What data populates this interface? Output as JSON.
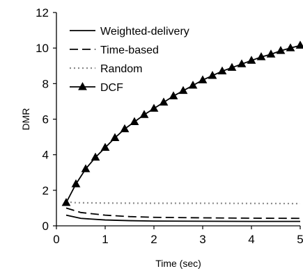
{
  "chart_data": {
    "type": "line",
    "xlabel": "Time (sec)",
    "ylabel": "DMR",
    "xlim": [
      0,
      5
    ],
    "ylim": [
      0,
      12
    ],
    "x_ticks": [
      "0",
      "1",
      "2",
      "3",
      "4",
      "5"
    ],
    "y_ticks": [
      "0",
      "2",
      "4",
      "6",
      "8",
      "10",
      "12"
    ],
    "legend_position": "top-left",
    "grid": false,
    "series": [
      {
        "name": "Weighted-delivery",
        "style": "solid",
        "color": "#000000",
        "x": [
          0.2,
          0.5,
          1.0,
          1.5,
          2.0,
          3.0,
          4.0,
          5.0
        ],
        "y": [
          0.6,
          0.42,
          0.33,
          0.29,
          0.27,
          0.26,
          0.25,
          0.25
        ]
      },
      {
        "name": "Time-based",
        "style": "dashed",
        "color": "#000000",
        "x": [
          0.2,
          0.5,
          1.0,
          1.5,
          2.0,
          3.0,
          4.0,
          5.0
        ],
        "y": [
          1.0,
          0.75,
          0.6,
          0.52,
          0.48,
          0.45,
          0.43,
          0.42
        ]
      },
      {
        "name": "Random",
        "style": "dotted",
        "color": "#8a8a8a",
        "x": [
          0.2,
          0.4,
          1.0,
          2.0,
          3.0,
          4.0,
          5.0
        ],
        "y": [
          1.35,
          1.3,
          1.28,
          1.27,
          1.27,
          1.26,
          1.25
        ]
      },
      {
        "name": "DCF",
        "style": "solid-triangle",
        "color": "#000000",
        "x": [
          0.2,
          0.4,
          0.6,
          0.8,
          1.0,
          1.2,
          1.4,
          1.6,
          1.8,
          2.0,
          2.2,
          2.4,
          2.6,
          2.8,
          3.0,
          3.2,
          3.4,
          3.6,
          3.8,
          4.0,
          4.2,
          4.4,
          4.6,
          4.8,
          5.0
        ],
        "y": [
          1.3,
          2.35,
          3.2,
          3.85,
          4.4,
          4.95,
          5.45,
          5.85,
          6.25,
          6.6,
          6.95,
          7.3,
          7.6,
          7.9,
          8.2,
          8.45,
          8.7,
          8.9,
          9.1,
          9.3,
          9.5,
          9.65,
          9.85,
          10.0,
          10.15
        ]
      }
    ]
  }
}
